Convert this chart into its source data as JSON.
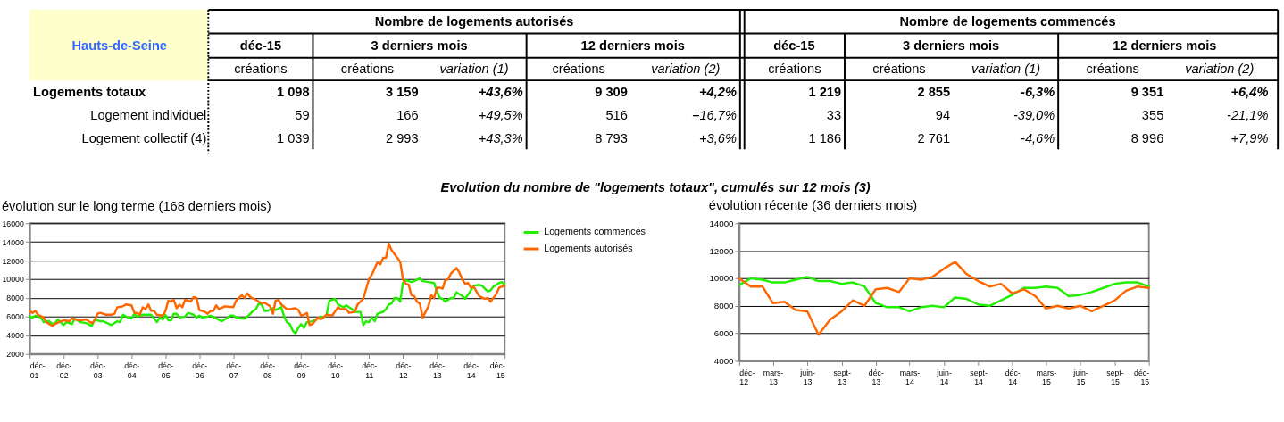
{
  "chart_data": [
    {
      "type": "other",
      "annotations": [
        "Hauts-de-Seine",
        "Nombre de logements autorisés",
        "Nombre de logements commencés",
        "déc-15",
        "3 derniers mois",
        "12 derniers mois",
        "déc-15",
        "3 derniers mois",
        "12 derniers mois",
        "créations",
        "créations",
        "variation (1)",
        "créations",
        "variation (2)",
        "créations",
        "créations",
        "variation (1)",
        "créations",
        "variation (2)",
        "Logements totaux",
        "1 098",
        "3 159",
        "+43,6%",
        "9 309",
        "+4,2%",
        "1 219",
        "2 855",
        "-6,3%",
        "9 351",
        "+6,4%",
        "Logement individuel",
        "59",
        "166",
        "+49,5%",
        "516",
        "+16,7%",
        "33",
        "94",
        "-39,0%",
        "355",
        "-21,1%",
        "Logement collectif (4)",
        "1 039",
        "2 993",
        "+43,3%",
        "8 793",
        "+3,6%",
        "1 186",
        "2 761",
        "-4,6%",
        "8 996",
        "+7,9%",
        "Evolution du nombre de \"logements totaux\", cumulés sur 12 mois (3)"
      ]
    },
    {
      "type": "line",
      "title": "évolution sur le long terme (168 derniers mois)",
      "ylim": [
        2000,
        16000
      ],
      "yticks": [
        2000,
        4000,
        6000,
        8000,
        10000,
        12000,
        14000,
        16000
      ],
      "xlim": [
        "2001-12",
        "2015-12"
      ],
      "xticks": [
        {
          "value": "2001-12",
          "label": "déc-01"
        },
        {
          "value": "2002-12",
          "label": "déc-02"
        },
        {
          "value": "2003-12",
          "label": "déc-03"
        },
        {
          "value": "2004-12",
          "label": "déc-04"
        },
        {
          "value": "2005-12",
          "label": "déc-05"
        },
        {
          "value": "2006-12",
          "label": "déc-06"
        },
        {
          "value": "2007-12",
          "label": "déc-07"
        },
        {
          "value": "2008-12",
          "label": "déc-08"
        },
        {
          "value": "2009-12",
          "label": "déc-09"
        },
        {
          "value": "2010-12",
          "label": "déc-10"
        },
        {
          "value": "2011-12",
          "label": "déc-11"
        },
        {
          "value": "2012-12",
          "label": "déc-12"
        },
        {
          "value": "2013-12",
          "label": "déc-13"
        },
        {
          "value": "2014-12",
          "label": "déc-14"
        },
        {
          "value": "2015-12",
          "label": "déc-15"
        }
      ],
      "grid": "y",
      "legend": "right",
      "series": [
        {
          "name": "Logements commencés",
          "color": "#22ee00",
          "x": [
            "2001-12",
            "2002-01",
            "2002-02",
            "2002-04",
            "2002-05",
            "2002-07",
            "2002-08",
            "2002-09",
            "2002-10",
            "2002-12",
            "2003-01",
            "2003-03",
            "2003-04",
            "2003-06",
            "2003-08",
            "2003-10",
            "2003-11",
            "2004-01",
            "2004-02",
            "2004-05",
            "2004-07",
            "2004-08",
            "2004-09",
            "2004-10",
            "2004-12",
            "2005-01",
            "2005-02",
            "2005-04",
            "2005-06",
            "2005-07",
            "2005-09",
            "2005-10",
            "2005-11",
            "2005-12",
            "2006-01",
            "2006-02",
            "2006-03",
            "2006-04",
            "2006-05",
            "2006-07",
            "2006-08",
            "2006-10",
            "2006-11",
            "2006-12",
            "2007-01",
            "2007-03",
            "2007-04",
            "2007-06",
            "2007-08",
            "2007-09",
            "2007-11",
            "2007-12",
            "2008-01",
            "2008-03",
            "2008-04",
            "2008-05",
            "2008-07",
            "2008-08",
            "2008-09",
            "2008-10",
            "2008-11",
            "2008-12",
            "2009-02",
            "2009-03",
            "2009-05",
            "2009-06",
            "2009-07",
            "2009-08",
            "2009-09",
            "2009-10",
            "2009-11",
            "2009-12",
            "2010-01",
            "2010-02",
            "2010-04",
            "2010-06",
            "2010-07",
            "2010-08",
            "2010-09",
            "2010-10",
            "2010-12",
            "2011-01",
            "2011-03",
            "2011-04",
            "2011-06",
            "2011-07",
            "2011-09",
            "2011-10",
            "2011-11",
            "2011-12",
            "2012-01",
            "2012-02",
            "2012-03",
            "2012-05",
            "2012-06",
            "2012-07",
            "2012-08",
            "2012-09",
            "2012-10",
            "2012-11",
            "2012-12",
            "2013-01",
            "2013-03",
            "2013-04",
            "2013-06",
            "2013-07",
            "2013-09",
            "2013-11",
            "2013-12",
            "2014-01",
            "2014-02",
            "2014-03",
            "2014-05",
            "2014-06",
            "2014-07",
            "2014-09",
            "2014-10",
            "2014-12",
            "2015-01",
            "2015-03",
            "2015-04",
            "2015-06",
            "2015-07",
            "2015-08",
            "2015-10",
            "2015-11",
            "2015-12"
          ],
          "values": [
            6000,
            5900,
            6100,
            5900,
            5400,
            5500,
            5200,
            5300,
            5700,
            5100,
            5400,
            5200,
            5800,
            5400,
            5300,
            5000,
            5700,
            5500,
            5500,
            5100,
            5500,
            5400,
            6200,
            6000,
            5800,
            6300,
            6000,
            6200,
            6200,
            6200,
            5400,
            5900,
            5700,
            6200,
            5600,
            5600,
            6300,
            6300,
            5900,
            6000,
            6400,
            6200,
            5900,
            6100,
            5900,
            6000,
            6100,
            5800,
            5500,
            5700,
            6100,
            6100,
            5900,
            5800,
            5800,
            6000,
            6600,
            6800,
            7400,
            7300,
            6600,
            6600,
            6900,
            6700,
            7000,
            6000,
            5400,
            5200,
            4500,
            4200,
            4800,
            5200,
            4800,
            5400,
            5500,
            5800,
            6000,
            5900,
            6200,
            7700,
            7900,
            7300,
            7000,
            7200,
            6800,
            6500,
            6500,
            5100,
            5500,
            5400,
            5900,
            5500,
            6300,
            6500,
            6800,
            7300,
            7400,
            8000,
            8000,
            7600,
            9600,
            9900,
            9700,
            9800,
            10100,
            9800,
            9700,
            9600,
            8700,
            8000,
            7900,
            7600,
            8000,
            8000,
            8600,
            8200,
            7900,
            8800,
            9300,
            9400,
            9300,
            8700,
            8800,
            9200,
            9600,
            9700,
            9400
          ]
        },
        {
          "name": "Logements autorisés",
          "color": "#ff6600",
          "x": [
            "2001-12",
            "2002-01",
            "2002-02",
            "2002-03",
            "2002-05",
            "2002-06",
            "2002-08",
            "2002-09",
            "2002-11",
            "2002-12",
            "2003-02",
            "2003-03",
            "2003-04",
            "2003-06",
            "2003-08",
            "2003-10",
            "2003-11",
            "2003-12",
            "2004-01",
            "2004-03",
            "2004-05",
            "2004-06",
            "2004-07",
            "2004-09",
            "2004-10",
            "2004-12",
            "2005-01",
            "2005-02",
            "2005-03",
            "2005-04",
            "2005-05",
            "2005-06",
            "2005-07",
            "2005-08",
            "2005-09",
            "2005-11",
            "2005-12",
            "2006-01",
            "2006-02",
            "2006-03",
            "2006-04",
            "2006-05",
            "2006-06",
            "2006-07",
            "2006-09",
            "2006-10",
            "2006-11",
            "2006-12",
            "2007-02",
            "2007-03",
            "2007-04",
            "2007-05",
            "2007-06",
            "2007-07",
            "2007-09",
            "2007-12",
            "2008-01",
            "2008-03",
            "2008-04",
            "2008-05",
            "2008-06",
            "2008-08",
            "2008-10",
            "2008-11",
            "2009-01",
            "2009-02",
            "2009-03",
            "2009-04",
            "2009-05",
            "2009-07",
            "2009-08",
            "2009-10",
            "2009-11",
            "2009-12",
            "2010-01",
            "2010-02",
            "2010-03",
            "2010-04",
            "2010-06",
            "2010-07",
            "2010-09",
            "2010-11",
            "2011-01",
            "2011-02",
            "2011-04",
            "2011-05",
            "2011-07",
            "2011-08",
            "2011-10",
            "2011-12",
            "2012-01",
            "2012-03",
            "2012-04",
            "2012-05",
            "2012-06",
            "2012-07",
            "2012-08",
            "2012-10",
            "2012-11",
            "2012-12",
            "2013-01",
            "2013-02",
            "2013-03",
            "2013-04",
            "2013-05",
            "2013-06",
            "2013-07",
            "2013-09",
            "2013-10",
            "2013-11",
            "2013-12",
            "2014-01",
            "2014-02",
            "2014-03",
            "2014-04",
            "2014-05",
            "2014-07",
            "2014-08",
            "2014-09",
            "2014-10",
            "2014-11",
            "2014-12",
            "2015-01",
            "2015-03",
            "2015-05",
            "2015-06",
            "2015-07",
            "2015-08",
            "2015-09",
            "2015-10",
            "2015-12"
          ],
          "values": [
            6600,
            6400,
            6600,
            6200,
            5900,
            5400,
            5000,
            5200,
            5500,
            5600,
            5500,
            5800,
            5700,
            5600,
            5700,
            5300,
            5600,
            6300,
            6400,
            6200,
            6200,
            6300,
            7000,
            7100,
            7300,
            7200,
            6400,
            6400,
            6200,
            7000,
            6800,
            7300,
            6600,
            6600,
            6200,
            6100,
            6600,
            7700,
            7600,
            7800,
            6900,
            7300,
            7000,
            7800,
            7600,
            8100,
            8000,
            6700,
            6500,
            6300,
            6600,
            6600,
            7200,
            6800,
            7100,
            7000,
            7700,
            8300,
            8000,
            8500,
            8100,
            7800,
            7400,
            7500,
            7100,
            6300,
            7700,
            7800,
            7300,
            6800,
            6800,
            6900,
            6700,
            6100,
            6200,
            6400,
            5100,
            5200,
            5900,
            5700,
            6200,
            6100,
            7000,
            6800,
            6800,
            6400,
            6500,
            7300,
            7900,
            10000,
            10500,
            11800,
            11600,
            12300,
            12300,
            13800,
            13100,
            12300,
            11900,
            10000,
            9500,
            9400,
            8300,
            8200,
            7600,
            7400,
            5900,
            7100,
            8300,
            8000,
            9100,
            9100,
            9000,
            9900,
            10000,
            10600,
            11200,
            10700,
            10000,
            9500,
            9600,
            9100,
            9200,
            8200,
            7900,
            8000,
            7600,
            8000,
            8400,
            9100,
            9300
          ]
        }
      ]
    },
    {
      "type": "line",
      "title": "évolution récente (36 derniers mois)",
      "ylim": [
        4000,
        14000
      ],
      "yticks": [
        4000,
        6000,
        8000,
        10000,
        12000,
        14000
      ],
      "xlim": [
        "2012-12",
        "2015-12"
      ],
      "xticks": [
        {
          "value": "2012-12",
          "label": "déc-12"
        },
        {
          "value": "2013-03",
          "label": "mars-13"
        },
        {
          "value": "2013-06",
          "label": "juin-13"
        },
        {
          "value": "2013-09",
          "label": "sept-13"
        },
        {
          "value": "2013-12",
          "label": "déc-13"
        },
        {
          "value": "2014-03",
          "label": "mars-14"
        },
        {
          "value": "2014-06",
          "label": "juin-14"
        },
        {
          "value": "2014-09",
          "label": "sept-14"
        },
        {
          "value": "2014-12",
          "label": "déc-14"
        },
        {
          "value": "2015-03",
          "label": "mars-15"
        },
        {
          "value": "2015-06",
          "label": "juin-15"
        },
        {
          "value": "2015-09",
          "label": "sept-15"
        },
        {
          "value": "2015-12",
          "label": "déc-15"
        }
      ],
      "grid": "y",
      "x": [
        "2012-12",
        "2013-01",
        "2013-02",
        "2013-03",
        "2013-04",
        "2013-05",
        "2013-06",
        "2013-07",
        "2013-08",
        "2013-09",
        "2013-10",
        "2013-11",
        "2013-12",
        "2014-01",
        "2014-02",
        "2014-03",
        "2014-04",
        "2014-05",
        "2014-06",
        "2014-07",
        "2014-08",
        "2014-09",
        "2014-10",
        "2014-11",
        "2014-12",
        "2015-01",
        "2015-02",
        "2015-03",
        "2015-04",
        "2015-05",
        "2015-06",
        "2015-07",
        "2015-08",
        "2015-09",
        "2015-10",
        "2015-11",
        "2015-12"
      ],
      "series": [
        {
          "color": "#22ee00",
          "values": [
            9500,
            10000,
            9900,
            9700,
            9700,
            9900,
            10100,
            9800,
            9800,
            9600,
            9700,
            9400,
            8200,
            7900,
            7900,
            7600,
            7900,
            8000,
            7900,
            8600,
            8500,
            8100,
            8000,
            8400,
            8800,
            9300,
            9300,
            9400,
            9300,
            8700,
            8800,
            9000,
            9300,
            9600,
            9700,
            9700,
            9400
          ]
        },
        {
          "color": "#ff6600",
          "values": [
            10000,
            9400,
            9400,
            8200,
            8300,
            7700,
            7600,
            5900,
            7000,
            7600,
            8400,
            8000,
            9200,
            9300,
            9000,
            10000,
            9900,
            10100,
            10700,
            11200,
            10300,
            9800,
            9400,
            9600,
            8900,
            9200,
            8700,
            7800,
            8000,
            7800,
            8000,
            7600,
            8000,
            8400,
            9100,
            9400,
            9300
          ]
        }
      ]
    }
  ]
}
